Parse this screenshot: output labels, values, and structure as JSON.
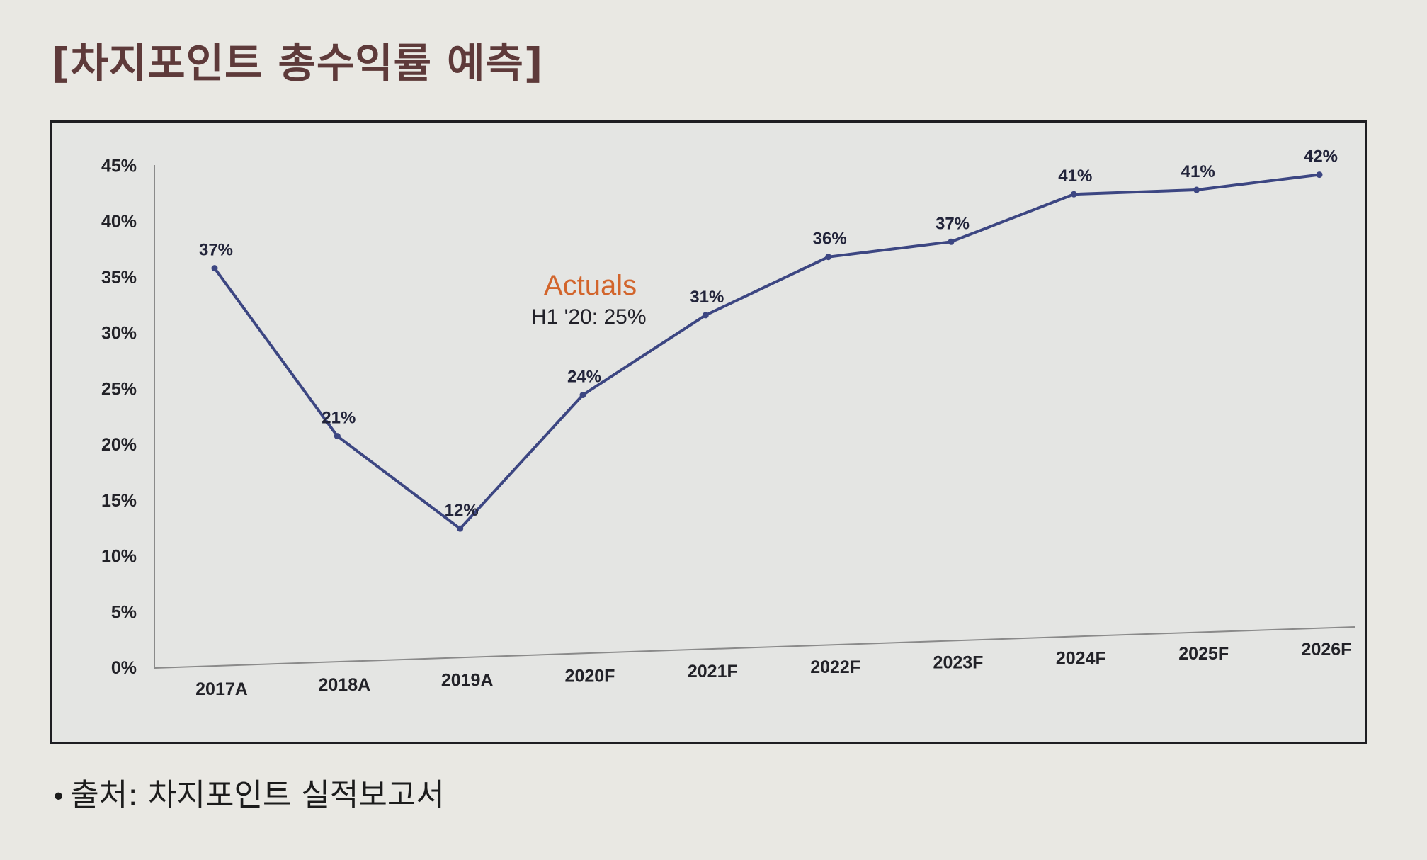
{
  "title": "[차지포인트 총수익률 예측]",
  "source": {
    "bullet": "•",
    "text": "출처: 차지포인트 실적보고서"
  },
  "chart_data": {
    "type": "line",
    "title": "",
    "xlabel": "",
    "ylabel": "",
    "ylim": [
      0,
      45
    ],
    "yticks": [
      "0%",
      "5%",
      "10%",
      "15%",
      "20%",
      "25%",
      "30%",
      "35%",
      "40%",
      "45%"
    ],
    "categories": [
      "2017A",
      "2018A",
      "2019A",
      "2020F",
      "2021F",
      "2022F",
      "2023F",
      "2024F",
      "2025F",
      "2026F"
    ],
    "series": [
      {
        "values": [
          37,
          21,
          12,
          24,
          31,
          36,
          37,
          41,
          41,
          42
        ],
        "labels": [
          "37%",
          "21%",
          "12%",
          "24%",
          "31%",
          "36%",
          "37%",
          "41%",
          "41%",
          "42%"
        ],
        "color": "#3c4682"
      }
    ],
    "annotation": {
      "title": "Actuals",
      "subtitle": "H1 '20: 25%",
      "title_color": "#d2652c"
    },
    "grid": false,
    "legend": "none"
  }
}
